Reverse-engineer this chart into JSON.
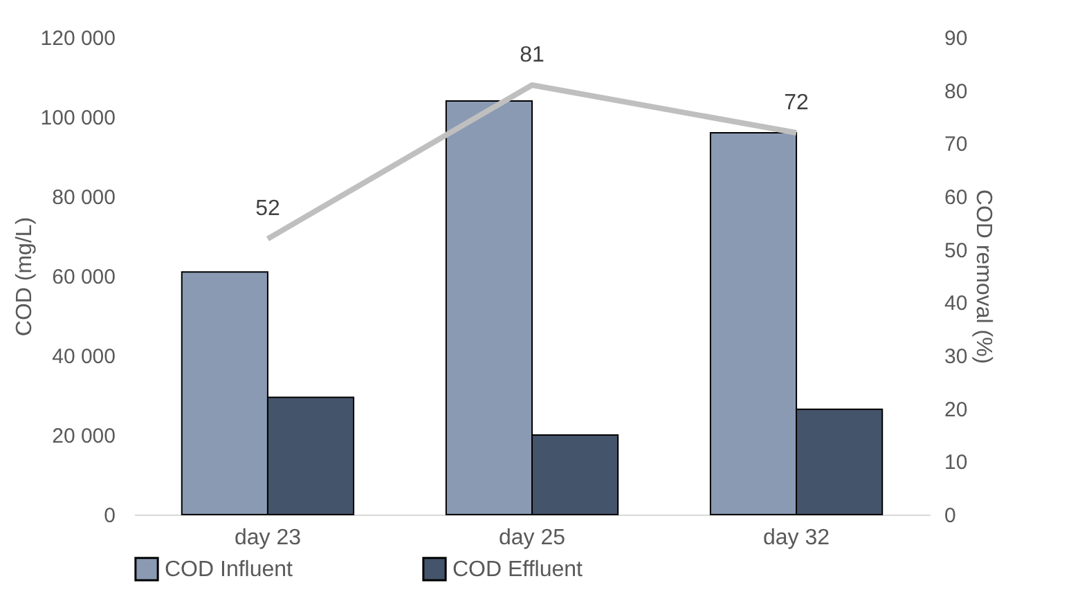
{
  "chart_data": {
    "type": "bar",
    "categories": [
      "day 23",
      "day 25",
      "day 32"
    ],
    "ylabel": "COD (mg/L)",
    "y2label": "COD removal (%)",
    "ylim": [
      0,
      120000
    ],
    "yticks": [
      {
        "value": 0,
        "label": "0"
      },
      {
        "value": 20000,
        "label": "20 000"
      },
      {
        "value": 40000,
        "label": "40 000"
      },
      {
        "value": 60000,
        "label": "60 000"
      },
      {
        "value": 80000,
        "label": "80 000"
      },
      {
        "value": 100000,
        "label": "100 000"
      },
      {
        "value": 120000,
        "label": "120 000"
      }
    ],
    "y2lim": [
      0,
      90
    ],
    "y2ticks": [
      0,
      10,
      20,
      30,
      40,
      50,
      60,
      70,
      80,
      90
    ],
    "legend": "bottom",
    "grid": false,
    "series": [
      {
        "name": "COD Influent",
        "color": "#8a9ab3",
        "values": [
          61000,
          104000,
          96000
        ]
      },
      {
        "name": "COD Effluent",
        "color": "#44546a",
        "values": [
          29500,
          20000,
          26500
        ]
      },
      {
        "type": "line",
        "axis": "y2",
        "color": "#bfbfbf",
        "values": [
          52,
          81,
          72
        ],
        "value_labels": [
          "52",
          "81",
          "72"
        ]
      }
    ]
  }
}
